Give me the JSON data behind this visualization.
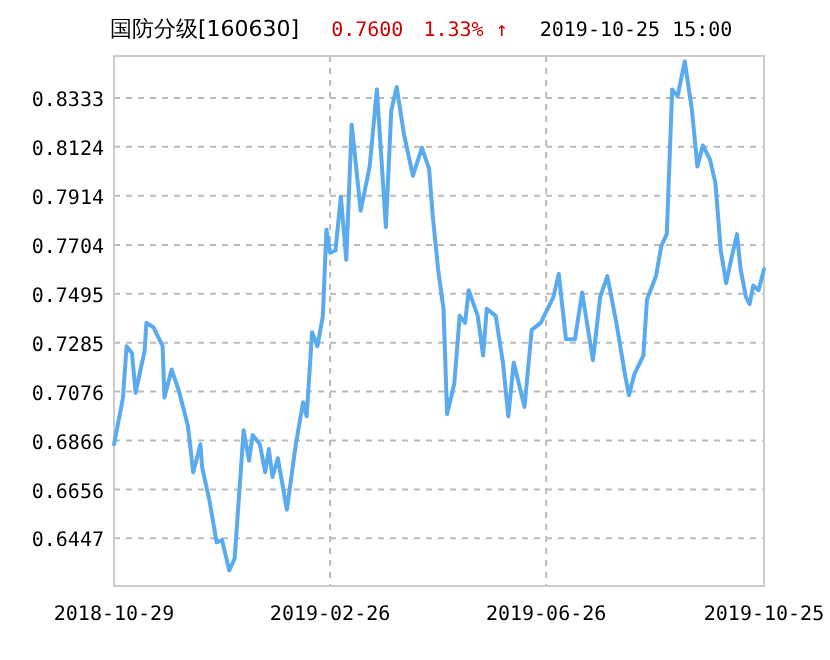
{
  "chart_data": {
    "type": "line",
    "title": "国防分级[160630]",
    "annotations": [
      "0.7600",
      "1.33% ↑",
      "2019-10-25 15:00"
    ],
    "x": [
      "2018-10-29",
      "2018-11-03",
      "2018-11-05",
      "2018-11-08",
      "2018-11-10",
      "2018-11-13",
      "2018-11-15",
      "2018-11-16",
      "2018-11-20",
      "2018-11-25",
      "2018-11-26",
      "2018-11-30",
      "2018-12-04",
      "2018-12-09",
      "2018-12-12",
      "2018-12-16",
      "2018-12-17",
      "2018-12-21",
      "2018-12-25",
      "2018-12-28",
      "2019-01-01",
      "2019-01-04",
      "2019-01-09",
      "2019-01-12",
      "2019-01-14",
      "2019-01-18",
      "2019-01-21",
      "2019-01-23",
      "2019-01-25",
      "2019-01-28",
      "2019-02-02",
      "2019-02-07",
      "2019-02-11",
      "2019-02-13",
      "2019-02-16",
      "2019-02-19",
      "2019-02-22",
      "2019-02-24",
      "2019-02-26",
      "2019-03-01",
      "2019-03-04",
      "2019-03-07",
      "2019-03-10",
      "2019-03-15",
      "2019-03-20",
      "2019-03-24",
      "2019-03-29",
      "2019-04-01",
      "2019-04-04",
      "2019-04-08",
      "2019-04-13",
      "2019-04-18",
      "2019-04-22",
      "2019-04-24",
      "2019-04-27",
      "2019-04-30",
      "2019-05-02",
      "2019-05-06",
      "2019-05-09",
      "2019-05-12",
      "2019-05-14",
      "2019-05-19",
      "2019-05-22",
      "2019-05-24",
      "2019-05-29",
      "2019-06-02",
      "2019-06-05",
      "2019-06-08",
      "2019-06-14",
      "2019-06-18",
      "2019-06-23",
      "2019-06-30",
      "2019-07-03",
      "2019-07-07",
      "2019-07-12",
      "2019-07-16",
      "2019-07-22",
      "2019-07-26",
      "2019-07-30",
      "2019-08-04",
      "2019-08-09",
      "2019-08-11",
      "2019-08-14",
      "2019-08-19",
      "2019-08-21",
      "2019-08-26",
      "2019-08-29",
      "2019-09-01",
      "2019-09-04",
      "2019-09-07",
      "2019-09-11",
      "2019-09-15",
      "2019-09-18",
      "2019-09-21",
      "2019-09-25",
      "2019-09-28",
      "2019-10-01",
      "2019-10-04",
      "2019-10-07",
      "2019-10-10",
      "2019-10-12",
      "2019-10-15",
      "2019-10-17",
      "2019-10-19",
      "2019-10-22",
      "2019-10-25"
    ],
    "series": [
      {
        "color": "#5aaaf0",
        "values": [
          0.685,
          0.705,
          0.727,
          0.724,
          0.707,
          0.718,
          0.725,
          0.737,
          0.735,
          0.727,
          0.705,
          0.717,
          0.708,
          0.693,
          0.673,
          0.685,
          0.675,
          0.661,
          0.643,
          0.644,
          0.631,
          0.636,
          0.691,
          0.678,
          0.689,
          0.685,
          0.673,
          0.683,
          0.671,
          0.679,
          0.657,
          0.685,
          0.703,
          0.697,
          0.733,
          0.727,
          0.74,
          0.777,
          0.767,
          0.768,
          0.791,
          0.764,
          0.822,
          0.785,
          0.804,
          0.837,
          0.778,
          0.828,
          0.838,
          0.818,
          0.8,
          0.812,
          0.803,
          0.783,
          0.76,
          0.743,
          0.698,
          0.711,
          0.74,
          0.737,
          0.751,
          0.74,
          0.723,
          0.743,
          0.74,
          0.72,
          0.697,
          0.72,
          0.701,
          0.734,
          0.737,
          0.748,
          0.758,
          0.73,
          0.73,
          0.75,
          0.721,
          0.748,
          0.757,
          0.737,
          0.714,
          0.706,
          0.715,
          0.723,
          0.747,
          0.757,
          0.77,
          0.775,
          0.837,
          0.834,
          0.849,
          0.828,
          0.804,
          0.813,
          0.807,
          0.797,
          0.768,
          0.754,
          0.765,
          0.775,
          0.76,
          0.748,
          0.745,
          0.753,
          0.751,
          0.76
        ]
      }
    ],
    "xlim": [
      "2018-10-29",
      "2019-10-25"
    ],
    "xticks": [
      "2018-10-29",
      "2019-02-26",
      "2019-06-26",
      "2019-10-25"
    ],
    "ylim": [
      0.6243,
      0.8513
    ],
    "yticks": [
      0.6447,
      0.6656,
      0.6866,
      0.7076,
      0.7285,
      0.7495,
      0.7704,
      0.7914,
      0.8124,
      0.8333
    ],
    "grid": true,
    "line_style": "solid"
  }
}
